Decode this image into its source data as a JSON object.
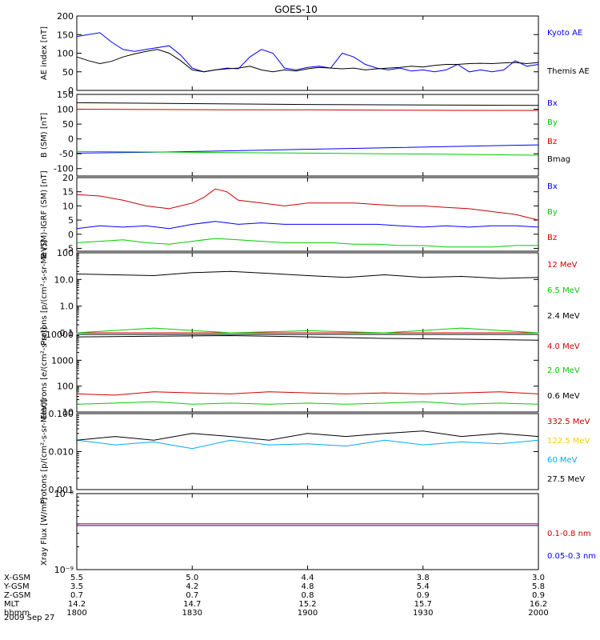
{
  "title": "GOES-10",
  "date_label": "2009 Sep 27",
  "ephemeris": {
    "row_labels": [
      "X-GSM",
      "Y-GSM",
      "Z-GSM",
      "MLT",
      "hhmm"
    ],
    "columns": [
      {
        "values": [
          "5.5",
          "3.5",
          "0.7",
          "14.2",
          "1800"
        ]
      },
      {
        "values": [
          "5.0",
          "4.2",
          "0.7",
          "14.7",
          "1830"
        ]
      },
      {
        "values": [
          "4.4",
          "4.8",
          "0.8",
          "15.2",
          "1900"
        ]
      },
      {
        "values": [
          "3.8",
          "5.4",
          "0.9",
          "15.7",
          "1930"
        ]
      },
      {
        "values": [
          "3.0",
          "5.8",
          "0.9",
          "16.2",
          "2000"
        ]
      }
    ]
  },
  "chart_data": [
    {
      "type": "line",
      "ylabel": "AE index [nT]",
      "ylim": [
        0,
        200
      ],
      "yticks": [
        0,
        50,
        100,
        150,
        200
      ],
      "series": [
        {
          "name": "Kyoto AE",
          "color": "#0000ff",
          "x": [
            0,
            3,
            6,
            9,
            12,
            15,
            18,
            21,
            24,
            27,
            30,
            33,
            36,
            39,
            42,
            45,
            48,
            51,
            54,
            57,
            60,
            63,
            66,
            69,
            72,
            75,
            78,
            81,
            84,
            87,
            90,
            93,
            96,
            99,
            102,
            105,
            108,
            111,
            114,
            117,
            120
          ],
          "y": [
            145,
            150,
            155,
            130,
            110,
            105,
            110,
            115,
            120,
            95,
            60,
            50,
            55,
            60,
            58,
            90,
            110,
            100,
            60,
            55,
            62,
            65,
            60,
            100,
            90,
            70,
            60,
            55,
            60,
            52,
            55,
            50,
            55,
            70,
            50,
            55,
            50,
            55,
            80,
            65,
            70
          ]
        },
        {
          "name": "Themis AE",
          "color": "#000000",
          "x": [
            0,
            3,
            6,
            9,
            12,
            15,
            18,
            21,
            24,
            27,
            30,
            33,
            36,
            39,
            42,
            45,
            48,
            51,
            54,
            57,
            60,
            63,
            66,
            69,
            72,
            75,
            78,
            81,
            84,
            87,
            90,
            93,
            96,
            99,
            102,
            105,
            108,
            111,
            114,
            117,
            120
          ],
          "y": [
            90,
            80,
            72,
            78,
            90,
            98,
            105,
            110,
            100,
            80,
            55,
            50,
            55,
            58,
            60,
            65,
            55,
            50,
            55,
            52,
            58,
            62,
            60,
            58,
            60,
            55,
            58,
            60,
            62,
            65,
            63,
            67,
            70,
            70,
            72,
            73,
            72,
            74,
            75,
            72,
            75
          ]
        }
      ]
    },
    {
      "type": "line",
      "ylabel": "B (SM) [nT]",
      "ylim": [
        -125,
        150
      ],
      "yticks": [
        -100,
        -50,
        0,
        50,
        100,
        150
      ],
      "series": [
        {
          "name": "Bx",
          "color": "#0000ff",
          "x": [
            0,
            20,
            40,
            60,
            80,
            100,
            120
          ],
          "y": [
            -48,
            -45,
            -40,
            -35,
            -30,
            -25,
            -20
          ]
        },
        {
          "name": "By",
          "color": "#00cc00",
          "x": [
            0,
            20,
            40,
            60,
            80,
            100,
            120
          ],
          "y": [
            -42,
            -44,
            -46,
            -48,
            -50,
            -52,
            -55
          ]
        },
        {
          "name": "Bz",
          "color": "#cc0000",
          "x": [
            0,
            20,
            40,
            60,
            80,
            100,
            120
          ],
          "y": [
            100,
            99,
            98,
            98,
            97,
            96,
            96
          ]
        },
        {
          "name": "Bmag",
          "color": "#000000",
          "x": [
            0,
            20,
            40,
            60,
            80,
            100,
            120
          ],
          "y": [
            122,
            120,
            118,
            116,
            115,
            114,
            113
          ]
        }
      ]
    },
    {
      "type": "line",
      "ylabel": "B (SM)-IGRF (SM) [nT]",
      "ylim": [
        -6,
        20
      ],
      "yticks": [
        -5,
        0,
        5,
        10,
        15,
        20
      ],
      "series": [
        {
          "name": "Bx",
          "color": "#0000ff",
          "x": [
            0,
            6,
            12,
            18,
            24,
            30,
            36,
            42,
            48,
            54,
            60,
            66,
            72,
            78,
            84,
            90,
            96,
            102,
            108,
            114,
            120
          ],
          "y": [
            2,
            3,
            2.5,
            3,
            2,
            3.5,
            4.5,
            3.5,
            4,
            3.5,
            3.5,
            3.5,
            3.5,
            3.5,
            3,
            2.5,
            3,
            2.5,
            3,
            3,
            2.5
          ]
        },
        {
          "name": "By",
          "color": "#00cc00",
          "x": [
            0,
            6,
            12,
            18,
            24,
            30,
            36,
            42,
            48,
            54,
            60,
            66,
            72,
            78,
            84,
            90,
            96,
            102,
            108,
            114,
            120
          ],
          "y": [
            -3,
            -2.5,
            -2,
            -3,
            -3.5,
            -2.5,
            -1.5,
            -2,
            -2.5,
            -3,
            -3,
            -3,
            -3.5,
            -3.5,
            -4,
            -4,
            -4.5,
            -4.5,
            -4.5,
            -4,
            -4
          ]
        },
        {
          "name": "Bz",
          "color": "#cc0000",
          "x": [
            0,
            6,
            12,
            18,
            24,
            30,
            33,
            36,
            39,
            42,
            48,
            54,
            60,
            66,
            72,
            78,
            84,
            90,
            96,
            102,
            108,
            114,
            120
          ],
          "y": [
            14,
            13.5,
            12,
            10,
            9,
            11,
            13,
            16,
            15,
            12,
            11,
            10,
            11,
            11,
            11,
            10.5,
            10,
            10,
            9.5,
            9,
            8,
            7,
            5
          ]
        }
      ]
    },
    {
      "type": "line",
      "ylabel": "Protons [p/(cm²-s-sr-MeV)]",
      "yscale": "log",
      "ylim": [
        0.1,
        100
      ],
      "yticklabels": [
        "0.1",
        "1.0",
        "10.0"
      ],
      "series": [
        {
          "name": "12 MeV",
          "color": "#cc0000",
          "x": [
            0,
            30,
            60,
            90,
            120
          ],
          "y": [
            0.1,
            0.1,
            0.1,
            0.1,
            0.1
          ]
        },
        {
          "name": "6.5 MeV",
          "color": "#00cc00",
          "x": [
            0,
            20,
            40,
            60,
            80,
            100,
            120
          ],
          "y": [
            0.1,
            0.15,
            0.1,
            0.12,
            0.1,
            0.15,
            0.1
          ]
        },
        {
          "name": "2.4 MeV",
          "color": "#000000",
          "x": [
            0,
            10,
            20,
            30,
            40,
            50,
            60,
            70,
            80,
            90,
            100,
            110,
            120
          ],
          "y": [
            16,
            15,
            14,
            18,
            20,
            17,
            14,
            12,
            15,
            12,
            13,
            11,
            12
          ]
        }
      ]
    },
    {
      "type": "line",
      "ylabel": "Electrons [e/(cm²-s-sr)]",
      "yscale": "log",
      "ylim": [
        10,
        10000
      ],
      "yticklabels": [
        "10",
        "100",
        "1000",
        "10000"
      ],
      "series": [
        {
          "name": "4.0 MeV",
          "color": "#cc0000",
          "x": [
            0,
            10,
            20,
            30,
            40,
            50,
            60,
            70,
            80,
            90,
            100,
            110,
            120
          ],
          "y": [
            50,
            45,
            60,
            55,
            50,
            60,
            55,
            50,
            55,
            50,
            55,
            60,
            50
          ]
        },
        {
          "name": "2.0 MeV",
          "color": "#00cc00",
          "x": [
            0,
            10,
            20,
            30,
            40,
            50,
            60,
            70,
            80,
            90,
            100,
            110,
            120
          ],
          "y": [
            20,
            22,
            25,
            20,
            22,
            20,
            22,
            20,
            22,
            25,
            20,
            22,
            20
          ]
        },
        {
          "name": "0.6 MeV",
          "color": "#000000",
          "x": [
            0,
            20,
            40,
            60,
            80,
            100,
            120
          ],
          "y": [
            8000,
            8500,
            9000,
            8000,
            7000,
            6500,
            6000
          ]
        }
      ]
    },
    {
      "type": "line",
      "ylabel": "Protons [p/(cm²-s-sr-MeV)]",
      "yscale": "log",
      "ylim": [
        0.001,
        0.1
      ],
      "yticklabels": [
        "0.001",
        "0.010",
        "0.100"
      ],
      "series": [
        {
          "name": "332.5 MeV",
          "color": "#cc0000",
          "x": [],
          "y": []
        },
        {
          "name": "122.5 MeV",
          "color": "#ffcc00",
          "x": [],
          "y": []
        },
        {
          "name": "60 MeV",
          "color": "#00aaee",
          "x": [
            0,
            10,
            20,
            30,
            40,
            50,
            60,
            70,
            80,
            90,
            100,
            110,
            120
          ],
          "y": [
            0.02,
            0.015,
            0.018,
            0.012,
            0.02,
            0.015,
            0.016,
            0.014,
            0.02,
            0.015,
            0.018,
            0.016,
            0.02
          ]
        },
        {
          "name": "27.5 MeV",
          "color": "#000000",
          "x": [
            0,
            10,
            20,
            30,
            40,
            50,
            60,
            70,
            80,
            90,
            100,
            110,
            120
          ],
          "y": [
            0.02,
            0.025,
            0.02,
            0.03,
            0.025,
            0.02,
            0.03,
            0.025,
            0.03,
            0.035,
            0.025,
            0.03,
            0.025
          ]
        }
      ]
    },
    {
      "type": "line",
      "ylabel": "Xray Flux [W/m²]",
      "yscale": "log",
      "ylim": [
        1e-09,
        1e-08
      ],
      "yticklabels": [
        "10⁻⁹",
        "10⁻⁸"
      ],
      "series": [
        {
          "name": "0.1-0.8 nm",
          "color": "#cc0000",
          "x": [
            0,
            120
          ],
          "y": [
            4e-09,
            4e-09
          ]
        },
        {
          "name": "0.05-0.3 nm",
          "color": "#0000ff",
          "x": [
            0,
            120
          ],
          "y": [
            3.8e-09,
            3.8e-09
          ]
        }
      ]
    }
  ]
}
